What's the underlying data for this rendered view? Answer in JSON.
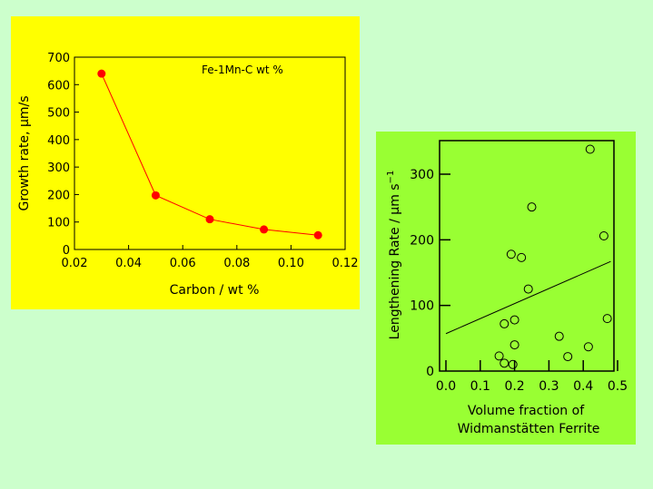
{
  "colors": {
    "page_background": "#ccffcc",
    "left_panel_background": "#ffff00",
    "right_panel_background": "#99ff33",
    "left_series": "#ff0000",
    "ink": "#000000"
  },
  "chart_data": [
    {
      "type": "line",
      "annotation": "Fe-1Mn-C wt %",
      "xlabel": "Carbon / wt %",
      "ylabel": "Growth rate, µm/s",
      "xlim": [
        0.02,
        0.12
      ],
      "ylim": [
        0,
        700
      ],
      "x_ticks": [
        "0.02",
        "0.04",
        "0.06",
        "0.08",
        "0.10",
        "0.12"
      ],
      "y_ticks": [
        "0",
        "100",
        "200",
        "300",
        "400",
        "500",
        "600",
        "700"
      ],
      "grid": false,
      "markers": "filled circles",
      "series": [
        {
          "x": [
            0.03,
            0.05,
            0.07,
            0.09,
            0.11
          ],
          "values": [
            640,
            197,
            110,
            73,
            52
          ]
        }
      ]
    },
    {
      "type": "scatter",
      "xlabel_line1": "Volume fraction of",
      "xlabel_line2": "Widmanstätten Ferrite",
      "ylabel_main": "Lengthening Rate / µm s",
      "ylabel_superscript": "−1",
      "xlim": [
        0.0,
        0.5
      ],
      "ylim": [
        0,
        350
      ],
      "x_ticks": [
        "0.0",
        "0.1",
        "0.2",
        "0.3",
        "0.4",
        "0.5"
      ],
      "y_ticks": [
        "0",
        "100",
        "200",
        "300"
      ],
      "grid": false,
      "markers": "open circles",
      "points": [
        {
          "x": 0.42,
          "y": 338
        },
        {
          "x": 0.25,
          "y": 250
        },
        {
          "x": 0.46,
          "y": 206
        },
        {
          "x": 0.19,
          "y": 178
        },
        {
          "x": 0.22,
          "y": 173
        },
        {
          "x": 0.24,
          "y": 125
        },
        {
          "x": 0.47,
          "y": 80
        },
        {
          "x": 0.2,
          "y": 78
        },
        {
          "x": 0.17,
          "y": 72
        },
        {
          "x": 0.33,
          "y": 53
        },
        {
          "x": 0.2,
          "y": 40
        },
        {
          "x": 0.415,
          "y": 37
        },
        {
          "x": 0.155,
          "y": 23
        },
        {
          "x": 0.355,
          "y": 22
        },
        {
          "x": 0.17,
          "y": 12
        },
        {
          "x": 0.195,
          "y": 10
        }
      ],
      "fit_line": {
        "x": [
          0.0,
          0.48
        ],
        "y": [
          57,
          167
        ]
      }
    }
  ]
}
